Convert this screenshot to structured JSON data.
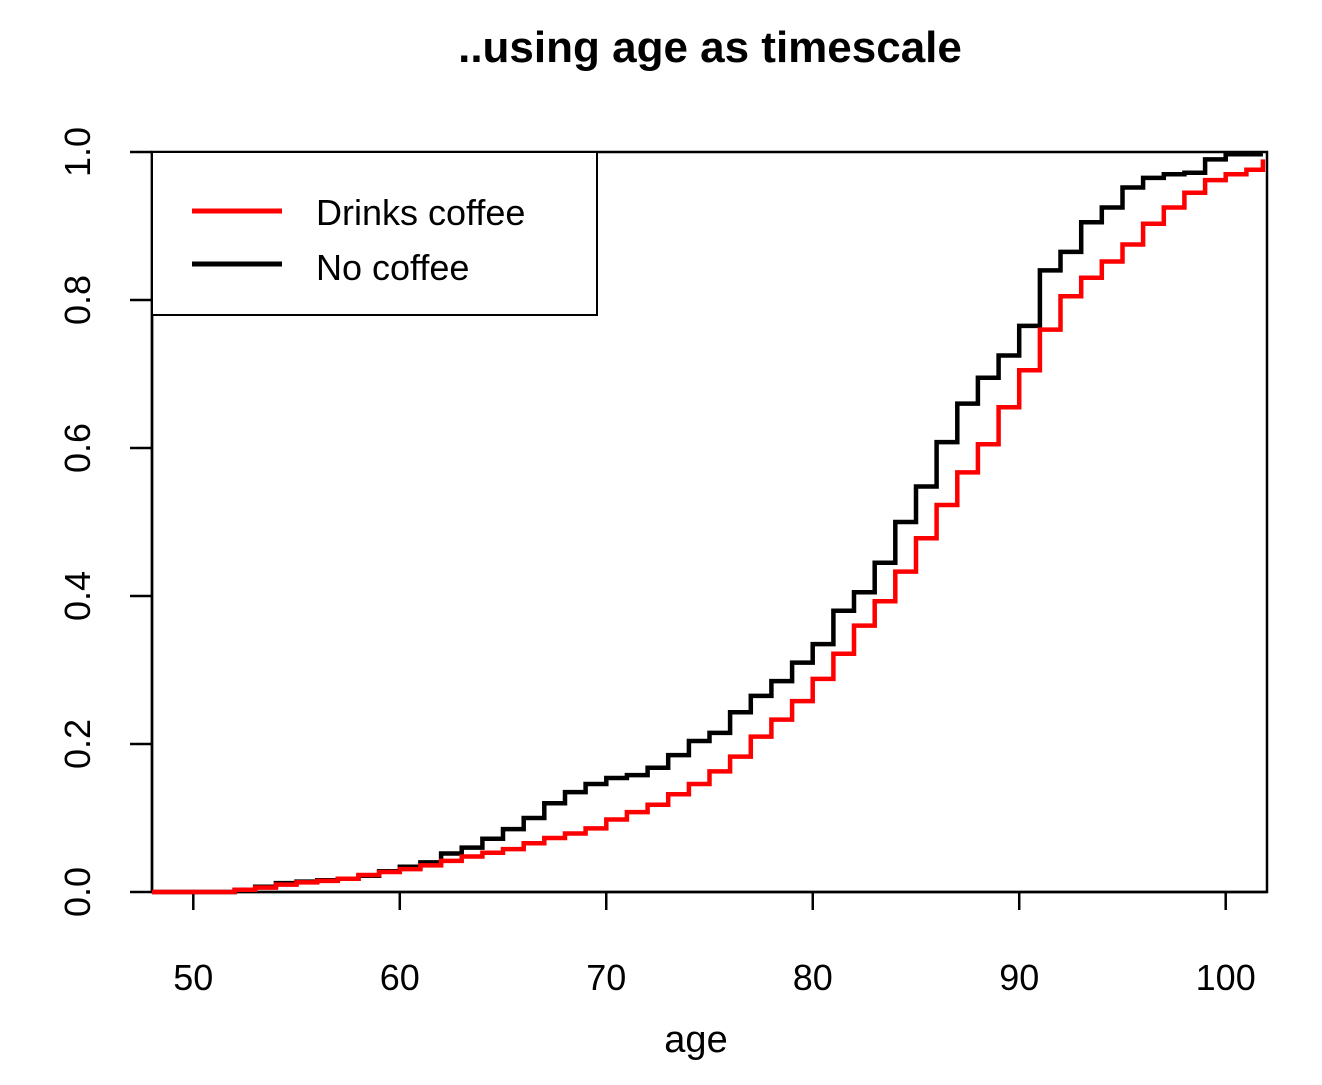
{
  "chart_data": {
    "type": "line",
    "title": "..using age as timescale",
    "xlabel": "age",
    "ylabel": "",
    "xlim": [
      48,
      102
    ],
    "ylim": [
      0,
      1
    ],
    "xticks": [
      50,
      60,
      70,
      80,
      90,
      100
    ],
    "yticks": [
      0.0,
      0.2,
      0.4,
      0.6,
      0.8,
      1.0
    ],
    "xtick_labels": [
      "50",
      "60",
      "70",
      "80",
      "90",
      "100"
    ],
    "ytick_labels": [
      "0.0",
      "0.2",
      "0.4",
      "0.6",
      "0.8",
      "1.0"
    ],
    "grid": false,
    "legend_position": "top-left",
    "step": true,
    "series": [
      {
        "name": "Drinks coffee",
        "color": "#ff0000",
        "x": [
          48,
          51,
          52,
          53,
          54,
          55,
          56,
          57,
          58,
          59,
          60,
          61,
          62,
          63,
          64,
          65,
          66,
          67,
          68,
          69,
          70,
          71,
          72,
          73,
          74,
          75,
          76,
          77,
          78,
          79,
          80,
          81,
          82,
          83,
          84,
          85,
          86,
          87,
          88,
          89,
          90,
          91,
          92,
          93,
          94,
          95,
          96,
          97,
          98,
          99,
          100,
          101,
          101.8
        ],
        "y": [
          0.0,
          0.0,
          0.003,
          0.006,
          0.01,
          0.013,
          0.015,
          0.018,
          0.023,
          0.027,
          0.031,
          0.036,
          0.042,
          0.048,
          0.053,
          0.058,
          0.066,
          0.073,
          0.079,
          0.086,
          0.098,
          0.108,
          0.118,
          0.132,
          0.146,
          0.163,
          0.183,
          0.21,
          0.233,
          0.258,
          0.288,
          0.322,
          0.36,
          0.393,
          0.433,
          0.478,
          0.523,
          0.567,
          0.605,
          0.655,
          0.705,
          0.76,
          0.805,
          0.83,
          0.852,
          0.875,
          0.903,
          0.925,
          0.945,
          0.962,
          0.97,
          0.976,
          0.99
        ]
      },
      {
        "name": "No coffee",
        "color": "#000000",
        "x": [
          48,
          51,
          52,
          53,
          54,
          55,
          56,
          57,
          58,
          59,
          60,
          61,
          62,
          63,
          64,
          65,
          66,
          67,
          68,
          69,
          70,
          71,
          72,
          73,
          74,
          75,
          76,
          77,
          78,
          79,
          80,
          81,
          82,
          83,
          84,
          85,
          86,
          87,
          88,
          89,
          90,
          91,
          92,
          93,
          94,
          95,
          96,
          97,
          98,
          99,
          100,
          101,
          101.8
        ],
        "y": [
          0.0,
          0.0,
          0.002,
          0.007,
          0.012,
          0.014,
          0.016,
          0.018,
          0.022,
          0.028,
          0.034,
          0.04,
          0.052,
          0.06,
          0.072,
          0.085,
          0.1,
          0.12,
          0.135,
          0.146,
          0.154,
          0.158,
          0.168,
          0.185,
          0.204,
          0.215,
          0.243,
          0.265,
          0.285,
          0.31,
          0.335,
          0.38,
          0.405,
          0.445,
          0.5,
          0.548,
          0.608,
          0.66,
          0.695,
          0.725,
          0.765,
          0.84,
          0.865,
          0.905,
          0.925,
          0.952,
          0.965,
          0.97,
          0.972,
          0.99,
          0.997,
          0.997,
          0.997
        ]
      }
    ]
  }
}
